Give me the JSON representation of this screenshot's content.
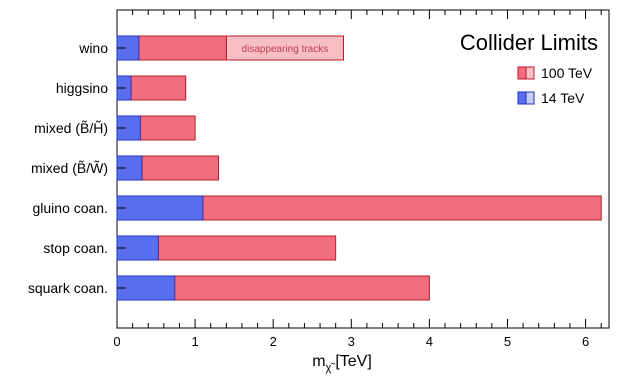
{
  "chart_data": {
    "type": "bar",
    "orientation": "horizontal",
    "stacked": "overlay",
    "title": "Collider Limits",
    "xlabel": "m",
    "xlabel_sub": "χ̃",
    "xlabel_unit": "[TeV]",
    "xlim": [
      0,
      6.3
    ],
    "xticks": [
      "0",
      "1",
      "2",
      "3",
      "4",
      "5",
      "6"
    ],
    "categories": [
      "wino",
      "higgsino",
      "mixed (B̃/H̃)",
      "mixed (B̃/W̃)",
      "gluino coan.",
      "stop coan.",
      "squark coan."
    ],
    "series": [
      {
        "name": "100 TeV",
        "values": [
          1.4,
          0.88,
          1.0,
          1.3,
          6.2,
          2.8,
          4.0
        ],
        "color": "#f26d7d",
        "edge": "#c0182c"
      },
      {
        "name": "14 TeV",
        "values": [
          0.28,
          0.18,
          0.3,
          0.32,
          1.1,
          0.53,
          0.74
        ],
        "color": "#5a6ef0",
        "edge": "#2233b8"
      }
    ],
    "extended": {
      "category": "wino",
      "low": [
        0.28,
        0.38
      ],
      "high": [
        1.4,
        2.9
      ],
      "label": "disappearing tracks",
      "color_low": "#c5cdf5",
      "color_high": "#f7bec4"
    },
    "legend_position": "top-right",
    "grid": false
  }
}
